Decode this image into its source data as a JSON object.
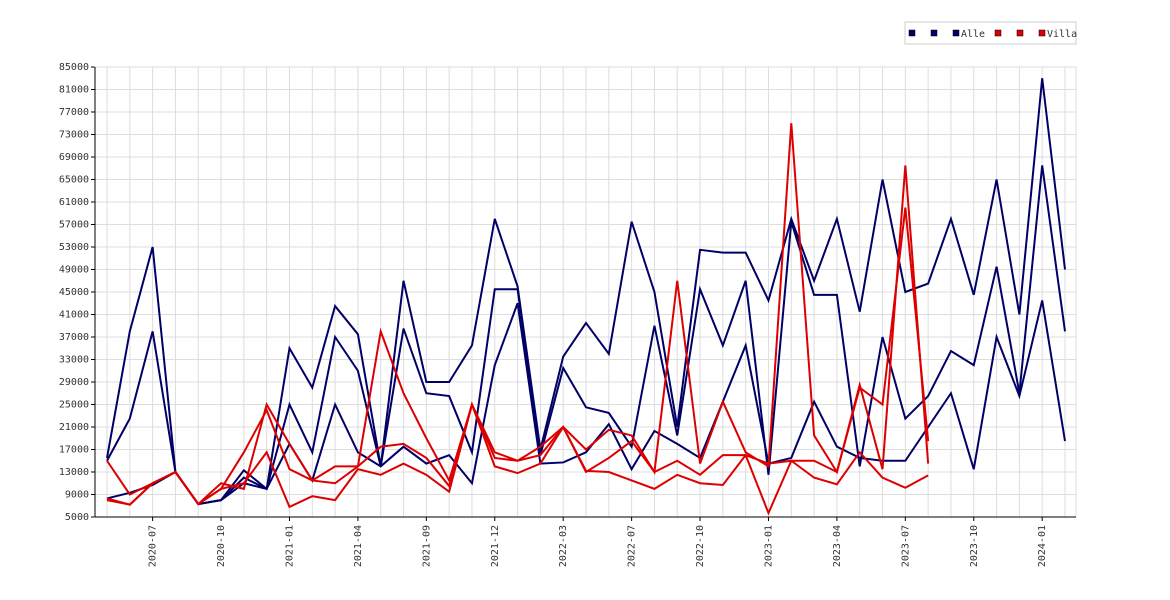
{
  "chart_data": {
    "type": "line",
    "categories": [
      null,
      null,
      "2020-07",
      null,
      null,
      "2020-10",
      null,
      null,
      "2021-01",
      null,
      null,
      "2021-04",
      null,
      null,
      "2021-09",
      null,
      null,
      "2021-12",
      null,
      null,
      "2022-03",
      null,
      null,
      "2022-07",
      null,
      null,
      "2022-10",
      null,
      null,
      "2023-01",
      null,
      null,
      "2023-04",
      null,
      null,
      "2023-07",
      null,
      null,
      "2023-10",
      null,
      null,
      "2024-01",
      null
    ],
    "series": [
      {
        "color": "#000066",
        "values": [
          15500,
          38000,
          53000,
          13000,
          7300,
          8000,
          11000,
          10000,
          35000,
          28000,
          42500,
          37500,
          14000,
          47000,
          29000,
          29000,
          35500,
          58000,
          46000,
          17000,
          33500,
          39500,
          34000,
          57500,
          45000,
          21000,
          52500,
          52000,
          52000,
          43500,
          58000,
          47000,
          58000,
          41500,
          65000,
          45000,
          46500,
          58000,
          44500,
          65000,
          41000,
          83000,
          49000
        ]
      },
      {
        "color": "#000066",
        "values": [
          15000,
          22500,
          38000,
          13000,
          7300,
          8000,
          12000,
          10000,
          25000,
          16500,
          37000,
          31000,
          14000,
          38500,
          27000,
          26500,
          16500,
          45500,
          45500,
          16000,
          31500,
          24500,
          23500,
          17500,
          39000,
          19500,
          45500,
          35500,
          47000,
          12500,
          57500,
          44500,
          44500,
          14000,
          37000,
          22500,
          26500,
          34500,
          32000,
          49500,
          27000,
          67500,
          38000
        ]
      },
      {
        "name": "Alle",
        "color": "#000066",
        "values": [
          8300,
          9300,
          10700,
          13000,
          7300,
          8000,
          13300,
          10000,
          18000,
          11500,
          25000,
          16500,
          14000,
          17500,
          14500,
          16000,
          11000,
          32000,
          43000,
          14500,
          14700,
          16500,
          21500,
          13500,
          20300,
          18000,
          15500,
          25500,
          35500,
          14500,
          15500,
          25500,
          17500,
          15500,
          15000,
          15000,
          21000,
          27000,
          13500,
          37000,
          26500,
          43500,
          18500
        ]
      },
      {
        "color": "#dd0000",
        "values": [
          15000,
          9000,
          11000,
          13000,
          7300,
          11000,
          10000,
          25000,
          18000,
          11500,
          11000,
          14000,
          38000,
          27000,
          19000,
          11500,
          25000,
          15500,
          15000,
          16000,
          21000,
          17000,
          20500,
          19500,
          13000,
          47000,
          14500,
          25500,
          16500,
          14000,
          75000,
          19500,
          13000,
          28500,
          13500,
          67500,
          14500,
          null,
          null,
          null,
          null,
          null,
          null
        ]
      },
      {
        "color": "#dd0000",
        "values": [
          8300,
          7200,
          11000,
          13000,
          7300,
          10000,
          16500,
          24000,
          13500,
          11500,
          14000,
          14000,
          17500,
          18000,
          15500,
          10500,
          25000,
          16500,
          15000,
          17500,
          21000,
          13000,
          15500,
          18500,
          13000,
          15000,
          12500,
          16000,
          16000,
          14500,
          15000,
          15000,
          13000,
          28000,
          25000,
          60000,
          18500,
          null,
          null,
          null,
          null,
          null,
          null
        ]
      },
      {
        "name": "Villa",
        "color": "#dd0000",
        "values": [
          8000,
          7200,
          11000,
          13000,
          7300,
          10000,
          11000,
          16500,
          6800,
          8700,
          8000,
          13500,
          12500,
          14500,
          12500,
          9500,
          25000,
          14000,
          12800,
          14500,
          21000,
          13200,
          13000,
          11500,
          10000,
          12500,
          11000,
          10700,
          16000,
          5700,
          15000,
          12000,
          10800,
          16500,
          12000,
          10200,
          12400,
          null,
          null,
          null,
          null,
          null,
          null
        ]
      }
    ],
    "ylim": [
      5000,
      85000
    ],
    "yticks": [
      5000,
      9000,
      13000,
      17000,
      21000,
      25000,
      29000,
      33000,
      37000,
      41000,
      45000,
      49000,
      53000,
      57000,
      61000,
      65000,
      69000,
      73000,
      77000,
      81000,
      85000
    ],
    "grid": true
  }
}
